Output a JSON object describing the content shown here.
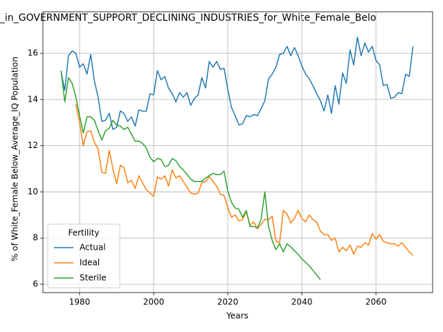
{
  "chart_data": {
    "type": "line",
    "title": "_in_GOVERNMENT_SUPPORT_DECLINING_INDUSTRIES_for_White_Female_Belo",
    "x_label": "Years",
    "y_label": "% of White_Female Below_Average_IQ Population",
    "legend_title": "Fertility",
    "legend_position": "lower left",
    "grid": true,
    "xlim": [
      1970.1,
      2075.3
    ],
    "ylim": [
      5.64,
      17.8
    ],
    "xticks": [
      1980,
      2000,
      2020,
      2040,
      2060
    ],
    "yticks": [
      6,
      8,
      10,
      12,
      14,
      16
    ],
    "x": [
      1975,
      1976,
      1977,
      1978,
      1979,
      1980,
      1981,
      1982,
      1983,
      1984,
      1985,
      1986,
      1987,
      1988,
      1989,
      1990,
      1991,
      1992,
      1993,
      1994,
      1995,
      1996,
      1997,
      1998,
      1999,
      2000,
      2001,
      2002,
      2003,
      2004,
      2005,
      2006,
      2007,
      2008,
      2009,
      2010,
      2011,
      2012,
      2013,
      2014,
      2015,
      2016,
      2017,
      2018,
      2019,
      2020,
      2021,
      2022,
      2023,
      2024,
      2025,
      2026,
      2027,
      2028,
      2029,
      2030,
      2031,
      2032,
      2033,
      2034,
      2035,
      2036,
      2037,
      2038,
      2039,
      2040,
      2041,
      2042,
      2043,
      2044,
      2045,
      2046,
      2047,
      2048,
      2049,
      2050,
      2051,
      2052,
      2053,
      2054,
      2055,
      2056,
      2057,
      2058,
      2059,
      2060,
      2061,
      2062,
      2063,
      2064,
      2065,
      2066,
      2067,
      2068,
      2069,
      2070
    ],
    "series": [
      {
        "name": "Actual",
        "color": "#1f77b4",
        "values": [
          15.2,
          14.4,
          15.9,
          16.1,
          16.0,
          15.4,
          15.55,
          15.1,
          15.95,
          14.8,
          14.1,
          13.05,
          13.1,
          13.4,
          12.7,
          12.8,
          13.5,
          13.4,
          13.05,
          13.25,
          12.85,
          13.55,
          13.5,
          13.5,
          14.25,
          14.2,
          15.25,
          14.85,
          15.0,
          14.5,
          14.25,
          13.9,
          14.3,
          14.1,
          14.3,
          13.75,
          14.05,
          14.2,
          14.95,
          14.5,
          15.65,
          15.4,
          15.65,
          15.3,
          15.35,
          14.45,
          13.65,
          13.3,
          12.9,
          12.95,
          13.3,
          13.25,
          13.35,
          13.3,
          13.6,
          13.95,
          14.9,
          15.1,
          15.4,
          15.95,
          16.0,
          16.3,
          15.9,
          16.25,
          15.9,
          15.45,
          15.1,
          14.9,
          14.6,
          14.25,
          13.95,
          13.5,
          14.2,
          13.4,
          14.6,
          13.8,
          15.15,
          14.7,
          16.15,
          15.5,
          16.7,
          15.9,
          16.45,
          16.05,
          16.3,
          15.7,
          15.5,
          14.6,
          14.65,
          14.05,
          14.1,
          14.3,
          14.25,
          15.1,
          15.0,
          16.3
        ]
      },
      {
        "name": "Ideal",
        "color": "#ff7f0e",
        "values": [
          null,
          null,
          null,
          null,
          13.8,
          13.0,
          12.0,
          12.6,
          12.65,
          12.15,
          11.85,
          10.85,
          10.8,
          11.8,
          11.0,
          10.35,
          11.15,
          11.05,
          10.4,
          10.5,
          10.15,
          10.7,
          10.4,
          10.1,
          9.95,
          9.8,
          10.65,
          10.55,
          10.7,
          10.25,
          10.95,
          10.6,
          10.7,
          10.45,
          10.2,
          9.95,
          9.9,
          9.95,
          10.4,
          10.45,
          10.65,
          10.45,
          10.25,
          9.9,
          9.85,
          9.3,
          8.9,
          9.0,
          8.75,
          8.8,
          9.15,
          8.55,
          8.7,
          8.4,
          8.6,
          8.8,
          8.8,
          8.95,
          7.85,
          7.8,
          9.2,
          9.05,
          8.65,
          8.85,
          9.2,
          8.85,
          8.7,
          9.0,
          8.8,
          8.7,
          8.3,
          8.15,
          8.15,
          7.9,
          8.0,
          7.4,
          7.6,
          7.45,
          7.7,
          7.3,
          7.65,
          7.6,
          7.8,
          7.7,
          8.2,
          7.95,
          8.15,
          7.85,
          7.8,
          7.75,
          7.75,
          7.65,
          7.8,
          7.6,
          7.4,
          7.25
        ]
      },
      {
        "name": "Sterile",
        "color": "#2ca02c",
        "values": [
          15.25,
          13.9,
          14.95,
          14.7,
          14.1,
          13.3,
          12.55,
          13.25,
          13.25,
          13.1,
          12.65,
          12.25,
          12.65,
          12.75,
          13.1,
          12.9,
          12.85,
          12.7,
          12.8,
          12.5,
          12.2,
          12.2,
          12.1,
          11.9,
          11.5,
          11.3,
          11.45,
          11.4,
          11.1,
          11.15,
          11.45,
          11.35,
          11.1,
          10.95,
          10.75,
          10.55,
          10.45,
          10.45,
          10.45,
          10.6,
          10.7,
          10.8,
          10.75,
          10.75,
          10.9,
          10.05,
          9.55,
          9.3,
          9.25,
          8.9,
          9.2,
          8.5,
          8.5,
          8.45,
          8.8,
          10.0,
          8.5,
          7.9,
          7.5,
          7.75,
          7.4,
          7.75,
          7.62,
          7.45,
          7.3,
          7.1,
          6.95,
          6.8,
          6.6,
          6.4,
          6.2,
          null,
          null,
          null,
          null,
          null,
          null,
          null,
          null,
          null,
          null,
          null,
          null,
          null,
          null,
          null,
          null,
          null,
          null,
          null,
          null,
          null,
          null,
          null,
          null,
          null
        ]
      }
    ]
  }
}
